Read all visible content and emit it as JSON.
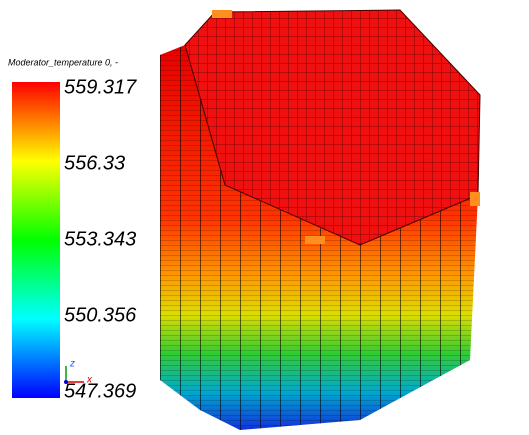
{
  "legend": {
    "title": "Moderator_temperature 0, -",
    "ticks": [
      559.317,
      556.33,
      553.343,
      550.356,
      547.369
    ]
  },
  "axes": {
    "z": "z",
    "x": "x"
  }
}
